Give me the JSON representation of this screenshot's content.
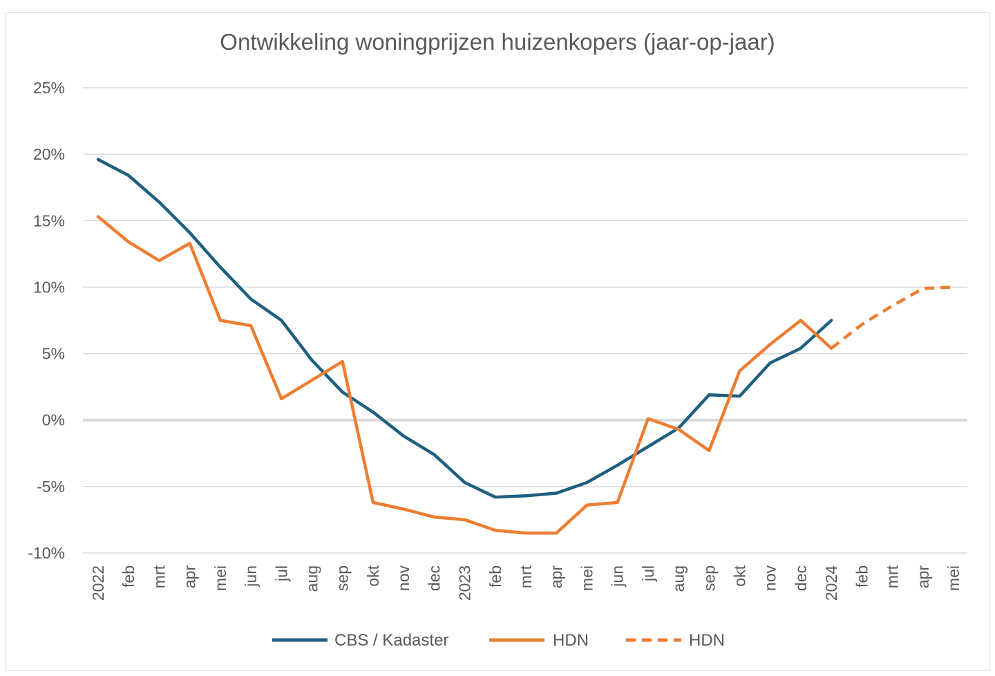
{
  "chart_data": {
    "type": "line",
    "title": "Ontwikkeling woningprijzen huizenkopers (jaar-op-jaar)",
    "xlabel": "",
    "ylabel": "",
    "ylim": [
      -10,
      25
    ],
    "yticks": [
      "25%",
      "20%",
      "15%",
      "10%",
      "5%",
      "0%",
      "-5%",
      "-10%"
    ],
    "ytick_values": [
      25,
      20,
      15,
      10,
      5,
      0,
      -5,
      -10
    ],
    "categories": [
      "2022",
      "feb",
      "mrt",
      "apr",
      "mei",
      "jun",
      "jul",
      "aug",
      "sep",
      "okt",
      "nov",
      "dec",
      "2023",
      "feb",
      "mrt",
      "apr",
      "mei",
      "jun",
      "jul",
      "aug",
      "sep",
      "okt",
      "nov",
      "dec",
      "2024",
      "feb",
      "mrt",
      "apr",
      "mei"
    ],
    "series": [
      {
        "name": "CBS / Kadaster",
        "color": "#1f5f7f",
        "style": "solid",
        "values": [
          19.6,
          18.4,
          16.4,
          14.1,
          11.5,
          9.1,
          7.5,
          4.5,
          2.1,
          0.6,
          -1.2,
          -2.6,
          -4.7,
          -5.8,
          -5.7,
          -5.5,
          -4.7,
          -3.4,
          -2.0,
          -0.6,
          1.9,
          1.8,
          4.3,
          5.4,
          7.5,
          null,
          null,
          null,
          null
        ]
      },
      {
        "name": "HDN",
        "color": "#ed7d31",
        "style": "solid",
        "values": [
          15.3,
          13.4,
          12.0,
          13.3,
          7.5,
          7.1,
          1.6,
          3.0,
          4.4,
          -6.2,
          -6.7,
          -7.3,
          -7.5,
          -8.3,
          -8.5,
          -8.5,
          -6.4,
          -6.2,
          0.1,
          -0.7,
          -2.3,
          3.7,
          5.7,
          7.5,
          5.4,
          null,
          null,
          null,
          null
        ]
      },
      {
        "name": "HDN",
        "color": "#ed7d31",
        "style": "dashed",
        "values": [
          null,
          null,
          null,
          null,
          null,
          null,
          null,
          null,
          null,
          null,
          null,
          null,
          null,
          null,
          null,
          null,
          null,
          null,
          null,
          null,
          null,
          null,
          null,
          null,
          5.4,
          7.2,
          8.6,
          9.9,
          10.0
        ]
      }
    ],
    "grid": true,
    "legend_position": "bottom"
  }
}
